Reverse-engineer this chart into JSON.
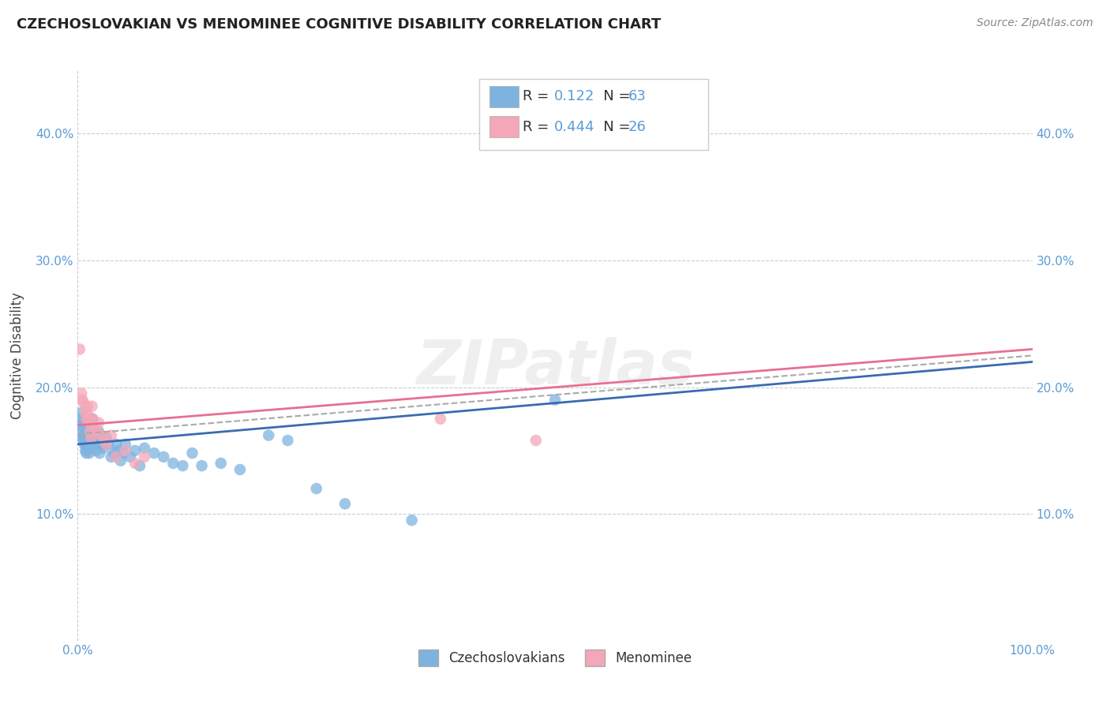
{
  "title": "CZECHOSLOVAKIAN VS MENOMINEE COGNITIVE DISABILITY CORRELATION CHART",
  "source": "Source: ZipAtlas.com",
  "ylabel": "Cognitive Disability",
  "xlim": [
    0.0,
    1.0
  ],
  "ylim": [
    0.0,
    0.45
  ],
  "xtick_vals": [
    0.0,
    1.0
  ],
  "xtick_labels": [
    "0.0%",
    "100.0%"
  ],
  "ytick_positions": [
    0.1,
    0.2,
    0.3,
    0.4
  ],
  "ytick_labels": [
    "10.0%",
    "20.0%",
    "30.0%",
    "40.0%"
  ],
  "legend_r1": "R = ",
  "legend_v1": "0.122",
  "legend_n1_label": "N = ",
  "legend_n1_val": "63",
  "legend_r2": "R = ",
  "legend_v2": "0.444",
  "legend_n2_label": "N = ",
  "legend_n2_val": "26",
  "blue_color": "#7EB3E0",
  "pink_color": "#F4A7B9",
  "blue_line_color": "#3B6BB0",
  "pink_line_color": "#E87090",
  "dash_color": "#AAAAAA",
  "grid_color": "#CCCCCC",
  "background_color": "#FFFFFF",
  "watermark": "ZIPatlas",
  "tick_color": "#5B9BD5",
  "title_color": "#222222",
  "source_color": "#888888",
  "label_color": "#444444",
  "blue_x": [
    0.002,
    0.003,
    0.004,
    0.004,
    0.005,
    0.005,
    0.006,
    0.006,
    0.007,
    0.007,
    0.008,
    0.008,
    0.009,
    0.01,
    0.01,
    0.011,
    0.011,
    0.012,
    0.012,
    0.013,
    0.014,
    0.015,
    0.015,
    0.016,
    0.017,
    0.018,
    0.019,
    0.02,
    0.021,
    0.022,
    0.023,
    0.024,
    0.025,
    0.026,
    0.027,
    0.028,
    0.03,
    0.032,
    0.035,
    0.038,
    0.04,
    0.042,
    0.045,
    0.048,
    0.05,
    0.055,
    0.06,
    0.065,
    0.07,
    0.08,
    0.09,
    0.1,
    0.11,
    0.12,
    0.13,
    0.15,
    0.17,
    0.2,
    0.22,
    0.25,
    0.28,
    0.35,
    0.5
  ],
  "blue_y": [
    0.175,
    0.17,
    0.165,
    0.18,
    0.16,
    0.172,
    0.158,
    0.162,
    0.155,
    0.168,
    0.15,
    0.155,
    0.148,
    0.153,
    0.165,
    0.16,
    0.155,
    0.148,
    0.165,
    0.158,
    0.152,
    0.162,
    0.175,
    0.168,
    0.16,
    0.155,
    0.15,
    0.162,
    0.158,
    0.165,
    0.148,
    0.155,
    0.16,
    0.155,
    0.152,
    0.158,
    0.16,
    0.155,
    0.145,
    0.148,
    0.155,
    0.15,
    0.142,
    0.148,
    0.155,
    0.145,
    0.15,
    0.138,
    0.152,
    0.148,
    0.145,
    0.14,
    0.138,
    0.148,
    0.138,
    0.14,
    0.135,
    0.162,
    0.158,
    0.12,
    0.108,
    0.095,
    0.19
  ],
  "pink_x": [
    0.002,
    0.004,
    0.005,
    0.006,
    0.008,
    0.009,
    0.01,
    0.011,
    0.012,
    0.013,
    0.014,
    0.015,
    0.016,
    0.018,
    0.02,
    0.022,
    0.025,
    0.028,
    0.03,
    0.035,
    0.04,
    0.05,
    0.06,
    0.07,
    0.38,
    0.48
  ],
  "pink_y": [
    0.23,
    0.195,
    0.19,
    0.188,
    0.18,
    0.175,
    0.185,
    0.178,
    0.172,
    0.165,
    0.16,
    0.185,
    0.175,
    0.168,
    0.165,
    0.172,
    0.162,
    0.158,
    0.155,
    0.162,
    0.145,
    0.15,
    0.14,
    0.145,
    0.175,
    0.158
  ],
  "blue_trendline": [
    0.155,
    0.22
  ],
  "pink_trendline": [
    0.17,
    0.23
  ],
  "dash_trendline": [
    0.163,
    0.225
  ]
}
